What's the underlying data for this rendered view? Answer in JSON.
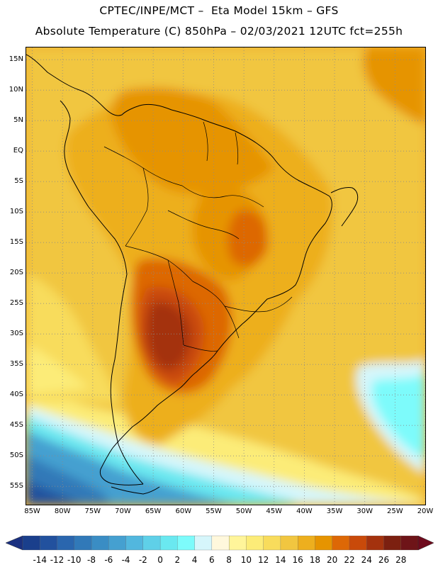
{
  "header": {
    "line1": "CPTEC/INPE/MCT –  Eta Model 15km – GFS",
    "line2": "Absolute Temperature (C) 850hPa – 02/03/2021 12UTC fct=255h"
  },
  "map": {
    "region": "South America",
    "lat_range": [
      -58,
      17
    ],
    "lon_range": [
      -86,
      -20
    ],
    "grid": "dotted",
    "lat_labels": [
      "15N",
      "10N",
      "5N",
      "EQ",
      "5S",
      "10S",
      "15S",
      "20S",
      "25S",
      "30S",
      "35S",
      "40S",
      "45S",
      "50S",
      "55S"
    ],
    "lat_values": [
      15,
      10,
      5,
      0,
      -5,
      -10,
      -15,
      -20,
      -25,
      -30,
      -35,
      -40,
      -45,
      -50,
      -55
    ],
    "lon_labels": [
      "85W",
      "80W",
      "75W",
      "70W",
      "65W",
      "60W",
      "55W",
      "50W",
      "45W",
      "40W",
      "35W",
      "30W",
      "25W",
      "20W"
    ],
    "lon_values": [
      -85,
      -80,
      -75,
      -70,
      -65,
      -60,
      -55,
      -50,
      -45,
      -40,
      -35,
      -30,
      -25,
      -20
    ]
  },
  "colorbar": {
    "labels": [
      "-14",
      "-12",
      "-10",
      "-8",
      "-6",
      "-4",
      "-2",
      "0",
      "2",
      "4",
      "6",
      "8",
      "10",
      "12",
      "14",
      "16",
      "18",
      "20",
      "22",
      "24",
      "26",
      "28"
    ],
    "colors": [
      "#1a3f8c",
      "#22519e",
      "#2a66ae",
      "#3179b8",
      "#3a8dc4",
      "#45a0d0",
      "#52b7de",
      "#5fd0e8",
      "#6ae8f0",
      "#7dfbfb",
      "#d6f6fb",
      "#fff8dc",
      "#fff59a",
      "#fcec78",
      "#f8dc5c",
      "#f1c640",
      "#edaf1e",
      "#e69400",
      "#dd6806",
      "#c94a0a",
      "#a4320e",
      "#7c2010",
      "#6e1418"
    ],
    "left_arrow_color": "#1a3080",
    "right_arrow_color": "#6e0a1c"
  }
}
